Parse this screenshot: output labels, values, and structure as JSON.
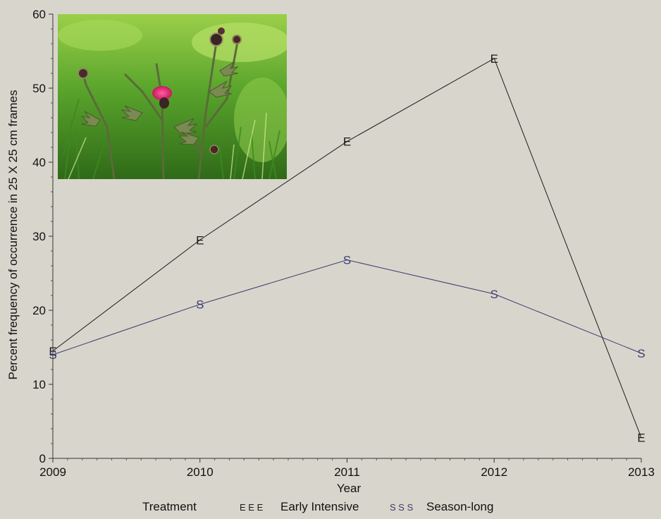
{
  "chart_data": {
    "type": "line",
    "title": "",
    "xlabel": "Year",
    "ylabel": "Percent frequency of occurrence in 25 X 25 cm frames",
    "x": [
      2009,
      2010,
      2011,
      2012,
      2013
    ],
    "x_tick_labels": [
      "2009",
      "2010",
      "2011",
      "2012",
      "2013"
    ],
    "xlim": [
      2009,
      2013
    ],
    "ylim": [
      0,
      60
    ],
    "y_ticks": [
      0,
      10,
      20,
      30,
      40,
      50,
      60
    ],
    "y_tick_labels": [
      "0",
      "10",
      "20",
      "30",
      "40",
      "50",
      "60"
    ],
    "grid": false,
    "series": [
      {
        "name": "Early Intensive",
        "marker": "E",
        "color": "#1a1a1a",
        "values": [
          14.5,
          29.5,
          42.8,
          54.0,
          2.8
        ]
      },
      {
        "name": "Season-long",
        "marker": "S",
        "color": "#3b3b6e",
        "values": [
          14.0,
          20.8,
          26.8,
          22.2,
          14.2
        ]
      }
    ],
    "legend": {
      "title": "Treatment",
      "placement": "bottom",
      "items": [
        {
          "symbol": "E E E",
          "label": "Early Intensive"
        },
        {
          "symbol": "S S S",
          "label": "Season-long"
        }
      ]
    },
    "inset_image": {
      "subject": "flowering thistle plant in grass",
      "placement": "top-left"
    }
  }
}
